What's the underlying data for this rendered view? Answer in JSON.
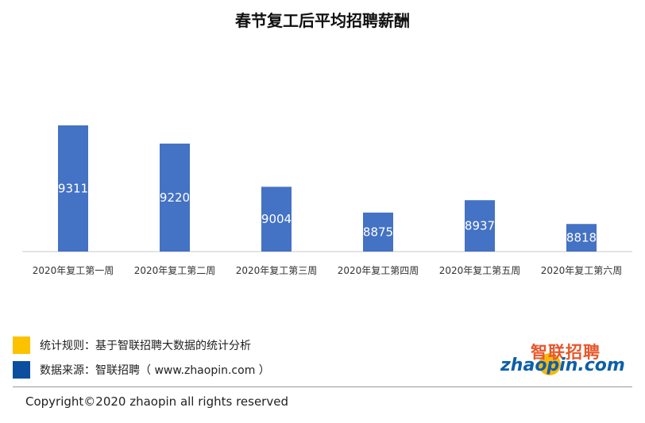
{
  "chart_data": {
    "type": "bar",
    "title": "春节复工后平均招聘薪酬",
    "categories": [
      "2020年复工第一周",
      "2020年复工第二周",
      "2020年复工第三周",
      "2020年复工第四周",
      "2020年复工第五周",
      "2020年复工第六周"
    ],
    "values": [
      9311,
      9220,
      9004,
      8875,
      8937,
      8818
    ],
    "ylim": [
      8680,
      9430
    ],
    "bar_color": "#4472c4",
    "grid": false
  },
  "legend": [
    {
      "color": "#fcc200",
      "text": "统计规则：基于智联招聘大数据的统计分析"
    },
    {
      "color": "#0b4f9e",
      "text": "数据来源：智联招聘（ www.zhaopin.com ）"
    }
  ],
  "logo": {
    "cn": "智联招聘",
    "en": "zhaopin.com",
    "accent_color": "#e8572c",
    "brand_color": "#0d5fa8"
  },
  "copyright": "Copyright©2020 zhaopin all rights reserved"
}
